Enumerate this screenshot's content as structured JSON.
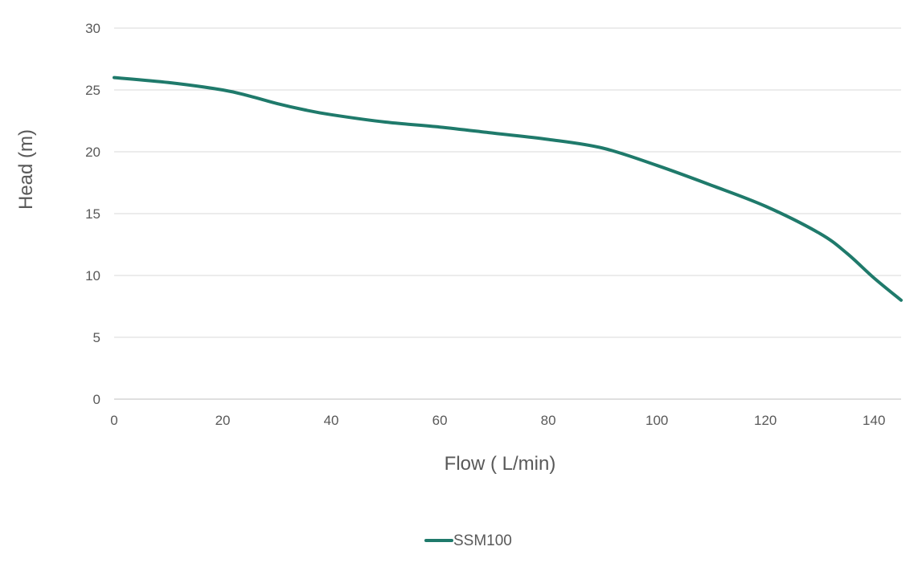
{
  "chart_data": {
    "type": "line",
    "title": "",
    "xlabel": "Flow ( L/min)",
    "ylabel": "Head (m)",
    "xlim": [
      0,
      145
    ],
    "ylim": [
      0,
      30
    ],
    "x_ticks": [
      0,
      20,
      40,
      60,
      80,
      100,
      120,
      140
    ],
    "y_ticks": [
      0,
      5,
      10,
      15,
      20,
      25,
      30
    ],
    "grid": "horizontal",
    "legend_position": "bottom",
    "series": [
      {
        "name": "SSM100",
        "color": "#1f7a6b",
        "points": [
          [
            0,
            26
          ],
          [
            10,
            25.6
          ],
          [
            20,
            25
          ],
          [
            25,
            24.5
          ],
          [
            30,
            23.9
          ],
          [
            35,
            23.4
          ],
          [
            40,
            23
          ],
          [
            50,
            22.4
          ],
          [
            60,
            22
          ],
          [
            70,
            21.5
          ],
          [
            80,
            21
          ],
          [
            90,
            20.3
          ],
          [
            100,
            18.9
          ],
          [
            110,
            17.3
          ],
          [
            120,
            15.6
          ],
          [
            130,
            13.4
          ],
          [
            135,
            11.8
          ],
          [
            140,
            9.8
          ],
          [
            145,
            8
          ]
        ]
      }
    ]
  }
}
